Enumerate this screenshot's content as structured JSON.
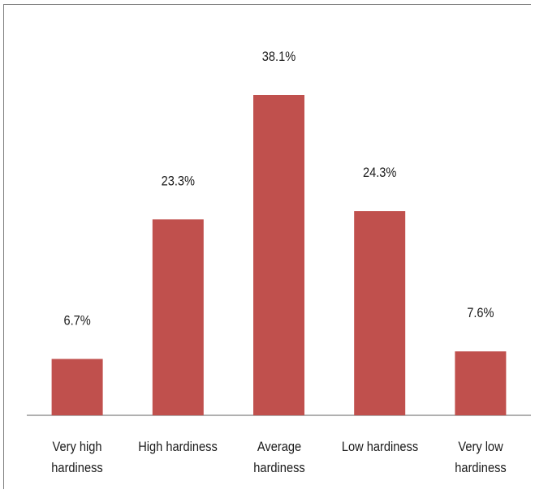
{
  "chart_data": {
    "type": "bar",
    "categories": [
      [
        "Very high",
        "hardiness"
      ],
      [
        "High hardiness"
      ],
      [
        "Average",
        "hardiness"
      ],
      [
        "Low hardiness"
      ],
      [
        "Very low",
        "hardiness"
      ]
    ],
    "values": [
      6.7,
      23.3,
      38.1,
      24.3,
      7.6
    ],
    "data_labels": [
      "6.7%",
      "23.3%",
      "38.1%",
      "24.3%",
      "7.6%"
    ],
    "ylim": [
      0,
      40
    ],
    "grid": false,
    "legend": "none",
    "bar_color": "#c0504d",
    "axis_color": "#808080"
  }
}
